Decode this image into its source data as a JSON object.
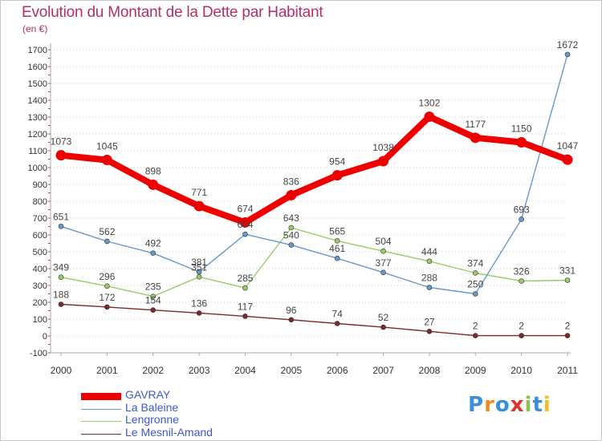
{
  "title": "Evolution du Montant de la Dette par Habitant",
  "unit": "(en €)",
  "logo": {
    "text": "Proxiti"
  },
  "chart_data": {
    "type": "line",
    "x": [
      "2000",
      "2001",
      "2002",
      "2003",
      "2004",
      "2005",
      "2006",
      "2007",
      "2008",
      "2009",
      "2010",
      "2011"
    ],
    "ylim": [
      -100,
      1700
    ],
    "yticks": [
      -100,
      0,
      100,
      200,
      300,
      400,
      500,
      600,
      700,
      800,
      900,
      1000,
      1100,
      1200,
      1300,
      1400,
      1500,
      1600,
      1700
    ],
    "grid": "horizontal dotted",
    "legend_position": "bottom-left",
    "series": [
      {
        "name": "GAVRAY",
        "color": "#ee0000",
        "values": [
          1073,
          1045,
          898,
          771,
          674,
          836,
          954,
          1038,
          1302,
          1177,
          1150,
          1047
        ],
        "labels": [
          "1073",
          "1045",
          "898",
          "771",
          "674",
          "836",
          "954",
          "1038",
          "1302",
          "1177",
          "1150",
          "1047"
        ]
      },
      {
        "name": "La Baleine",
        "color": "#6699cc",
        "values": [
          651,
          562,
          492,
          381,
          604,
          540,
          461,
          377,
          288,
          250,
          693,
          1672
        ],
        "labels": [
          "651",
          "562",
          "492",
          "381",
          "604",
          "540",
          "461",
          "377",
          "288",
          "250",
          "693",
          "1672"
        ]
      },
      {
        "name": "Lengronne",
        "color": "#99cc66",
        "values": [
          349,
          296,
          235,
          351,
          285,
          643,
          565,
          504,
          444,
          374,
          326,
          331
        ],
        "labels": [
          "349",
          "296",
          "235",
          "351",
          "285",
          "643",
          "565",
          "504",
          "444",
          "374",
          "326",
          "331"
        ]
      },
      {
        "name": "Le Mesnil-Amand",
        "color": "#7a2a2a",
        "values": [
          188,
          172,
          154,
          136,
          117,
          96,
          74,
          52,
          27,
          2,
          2,
          2
        ],
        "labels": [
          "188",
          "172",
          "154",
          "136",
          "117",
          "96",
          "74",
          "52",
          "27",
          "2",
          "2",
          "2"
        ]
      }
    ]
  }
}
